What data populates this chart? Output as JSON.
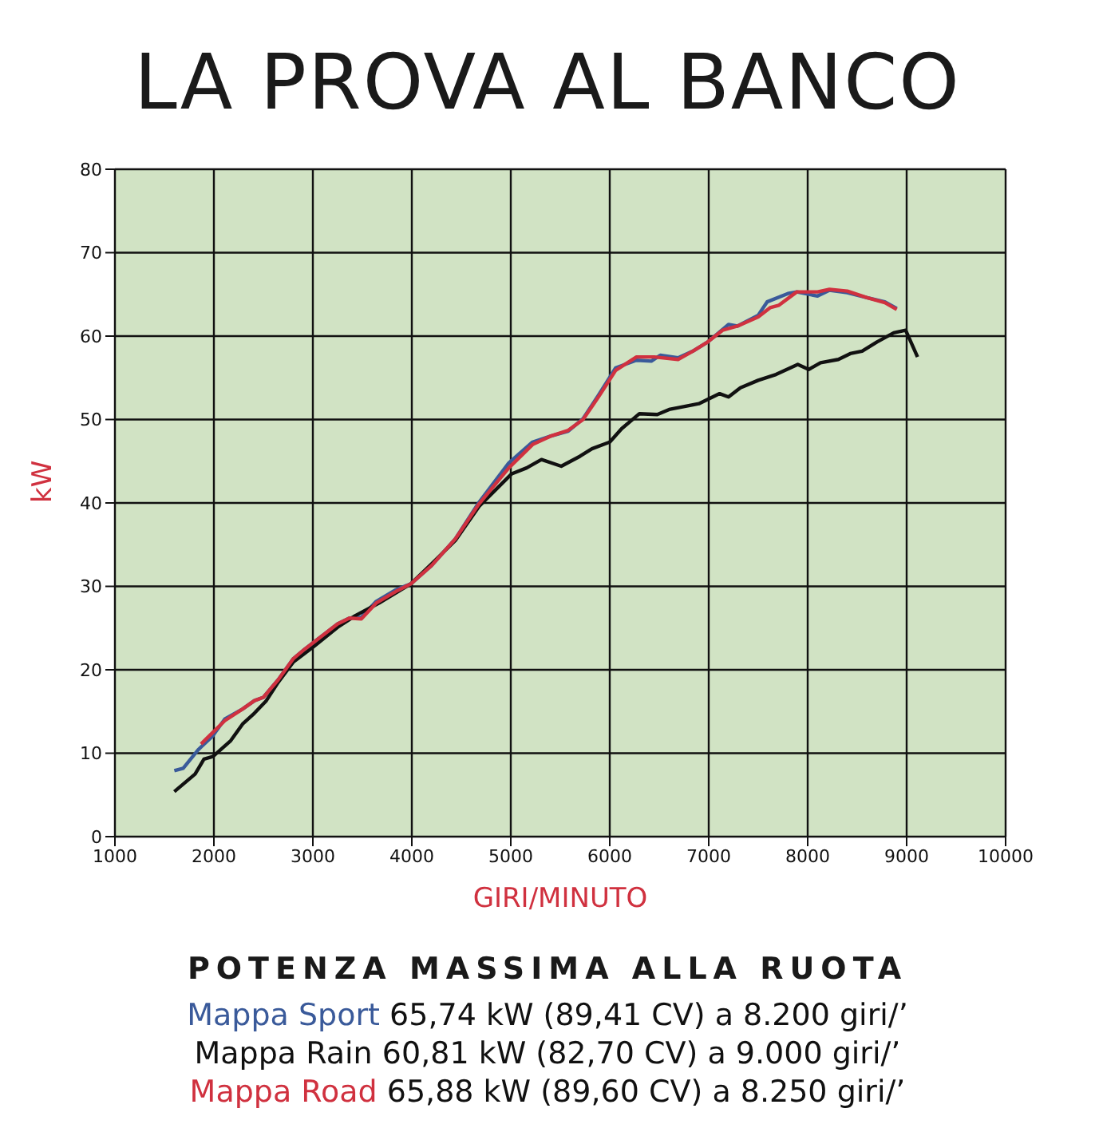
{
  "chart_data": {
    "type": "line",
    "title": "LA PROVA AL BANCO",
    "subtitle": "POTENZA MASSIMA ALLA RUOTA",
    "xlabel": "GIRI/MINUTO",
    "ylabel": "kW",
    "xlim": [
      1000,
      10000
    ],
    "xticks": [
      1000,
      2000,
      3000,
      4000,
      5000,
      6000,
      7000,
      8000,
      9000,
      10000
    ],
    "ylim": [
      0,
      80
    ],
    "yticks": [
      0,
      10,
      20,
      30,
      40,
      50,
      60,
      70,
      80
    ],
    "grid": true,
    "legend": "bottom",
    "marker": "none",
    "line_style": "solid",
    "annotations": [
      "65,74 kW (89,41 CV) a 8.200 giri/’",
      "60,81 kW (82,70 CV) a 9.000 giri/’",
      "65,88 kW (89,60 CV) a 8.250 giri/’"
    ],
    "series": [
      {
        "name": "Mappa Sport",
        "color": "#3a5a9a",
        "x": [
          1600,
          1690,
          1840,
          1990,
          2110,
          2290,
          2410,
          2500,
          2650,
          2800,
          2920,
          3130,
          3250,
          3370,
          3490,
          3640,
          3840,
          3990,
          4200,
          4440,
          4680,
          4980,
          5220,
          5400,
          5580,
          5730,
          5880,
          6060,
          6270,
          6420,
          6510,
          6690,
          6840,
          6990,
          7200,
          7290,
          7500,
          7590,
          7800,
          7890,
          8100,
          8220,
          8400,
          8600,
          8780,
          8900
        ],
        "values": [
          7.9,
          8.2,
          10.4,
          12.1,
          14.1,
          15.3,
          16.3,
          16.7,
          18.8,
          21.3,
          22.5,
          24.4,
          25.5,
          26.2,
          26.3,
          28.2,
          29.6,
          30.3,
          32.5,
          35.7,
          40.1,
          44.8,
          47.3,
          48,
          48.6,
          50.1,
          52.8,
          56.2,
          57.1,
          57,
          57.7,
          57.4,
          58.2,
          59.3,
          61.4,
          61.2,
          62.5,
          64.1,
          65.1,
          65.3,
          64.8,
          65.5,
          65.2,
          64.6,
          64.1,
          63.3
        ]
      },
      {
        "name": "Mappa Rain",
        "color": "#111111",
        "x": [
          1600,
          1810,
          1900,
          1990,
          2170,
          2290,
          2410,
          2530,
          2650,
          2800,
          3010,
          3250,
          3430,
          3670,
          3990,
          4200,
          4440,
          4680,
          5010,
          5160,
          5310,
          5510,
          5700,
          5820,
          6000,
          6120,
          6300,
          6480,
          6600,
          6900,
          7110,
          7200,
          7320,
          7500,
          7680,
          7900,
          8010,
          8130,
          8310,
          8430,
          8550,
          8700,
          8870,
          8990,
          9110
        ],
        "values": [
          5.4,
          7.5,
          9.3,
          9.6,
          11.5,
          13.5,
          14.8,
          16.3,
          18.5,
          20.9,
          22.8,
          25.1,
          26.5,
          28,
          30.3,
          32.7,
          35.5,
          39.6,
          43.5,
          44.2,
          45.2,
          44.4,
          45.6,
          46.5,
          47.3,
          48.9,
          50.7,
          50.6,
          51.2,
          51.9,
          53.1,
          52.7,
          53.8,
          54.7,
          55.4,
          56.6,
          56,
          56.8,
          57.2,
          57.9,
          58.2,
          59.3,
          60.4,
          60.7,
          57.5
        ]
      },
      {
        "name": "Mappa Road",
        "color": "#d0313f",
        "x": [
          1870,
          1990,
          2110,
          2290,
          2410,
          2500,
          2650,
          2800,
          2920,
          3130,
          3250,
          3370,
          3490,
          3640,
          3840,
          3990,
          4200,
          4440,
          4680,
          4980,
          5220,
          5400,
          5580,
          5730,
          5880,
          6060,
          6270,
          6450,
          6690,
          6840,
          6990,
          7140,
          7290,
          7500,
          7620,
          7710,
          7890,
          8100,
          8220,
          8400,
          8600,
          8780,
          8900
        ],
        "values": [
          11.1,
          12.5,
          13.9,
          15.3,
          16.3,
          16.7,
          18.8,
          21.3,
          22.5,
          24.4,
          25.5,
          26.2,
          26.1,
          28,
          29.4,
          30.3,
          32.5,
          35.7,
          39.9,
          44.2,
          47,
          48,
          48.7,
          50,
          52.6,
          55.9,
          57.5,
          57.5,
          57.2,
          58.2,
          59.3,
          60.7,
          61.2,
          62.3,
          63.4,
          63.7,
          65.3,
          65.3,
          65.6,
          65.4,
          64.6,
          64,
          63.2
        ]
      }
    ]
  }
}
